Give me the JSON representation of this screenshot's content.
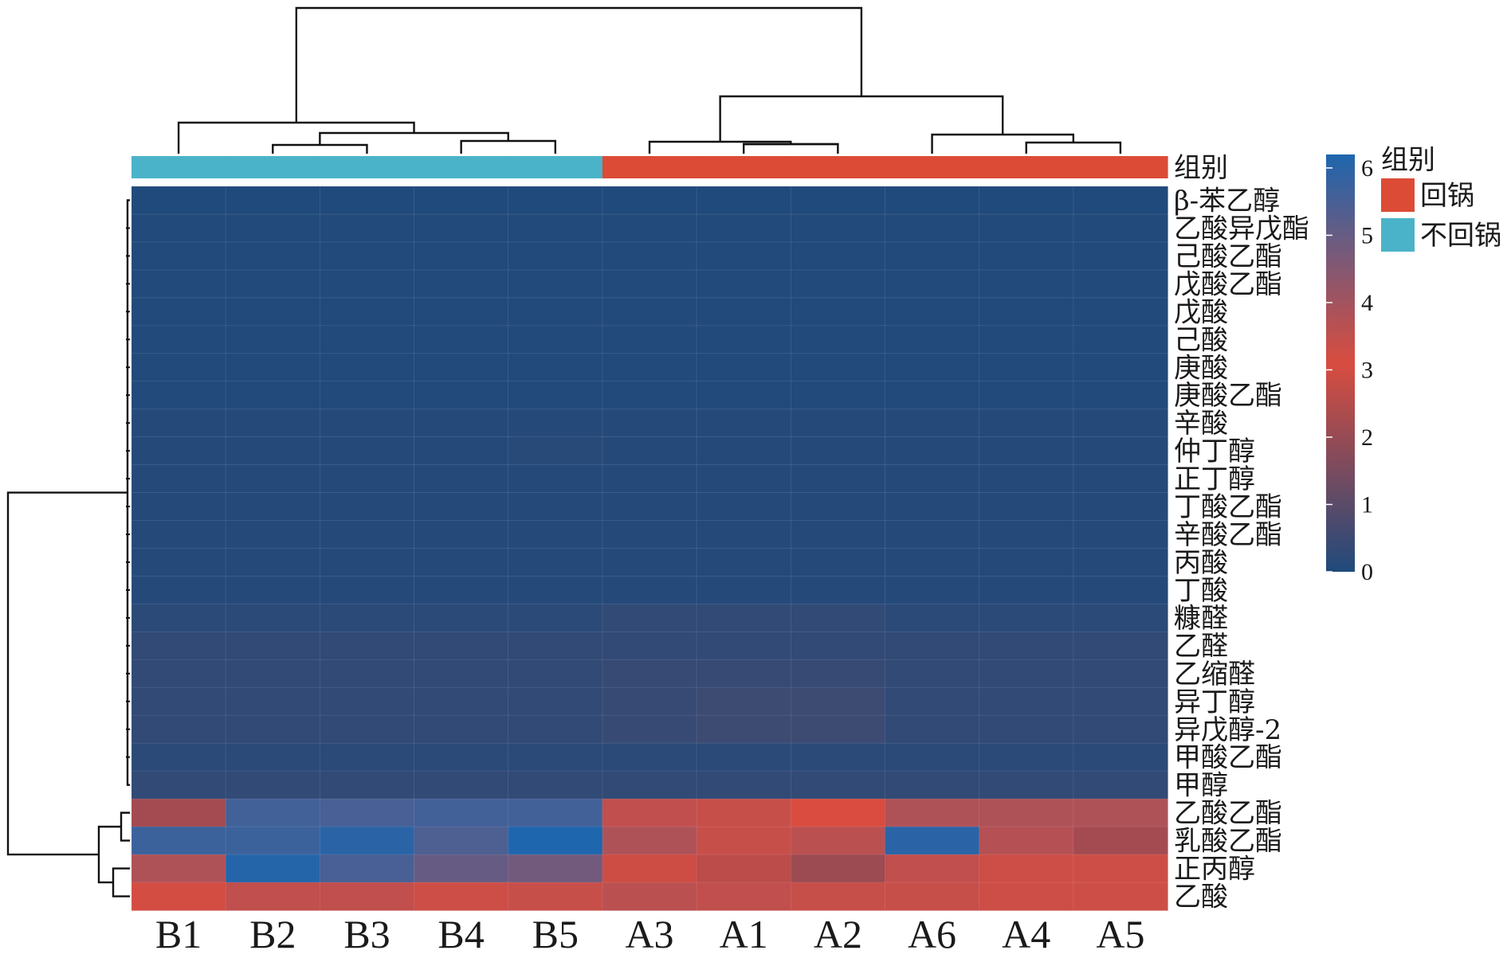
{
  "chart_data": {
    "type": "heatmap",
    "columns": [
      "B1",
      "B2",
      "B3",
      "B4",
      "B5",
      "A3",
      "A1",
      "A2",
      "A6",
      "A4",
      "A5"
    ],
    "rows": [
      "β-苯乙醇",
      "乙酸异戊酯",
      "己酸乙酯",
      "戊酸乙酯",
      "戊酸",
      "己酸",
      "庚酸",
      "庚酸乙酯",
      "辛酸",
      "仲丁醇",
      "正丁醇",
      "丁酸乙酯",
      "辛酸乙酯",
      "丙酸",
      "丁酸",
      "糠醛",
      "乙醛",
      "乙缩醛",
      "异丁醇",
      "异戊醇-2",
      "甲酸乙酯",
      "甲醇",
      "乙酸乙酯",
      "乳酸乙酯",
      "正丙醇",
      "乙酸"
    ],
    "values": [
      [
        0.02,
        0.02,
        0.02,
        0.02,
        0.02,
        0.02,
        0.02,
        0.02,
        0.02,
        0.02,
        0.02
      ],
      [
        0.05,
        0.05,
        0.05,
        0.05,
        0.05,
        0.05,
        0.05,
        0.05,
        0.05,
        0.05,
        0.05
      ],
      [
        0.05,
        0.05,
        0.05,
        0.05,
        0.05,
        0.05,
        0.05,
        0.05,
        0.05,
        0.05,
        0.05
      ],
      [
        0.05,
        0.05,
        0.05,
        0.05,
        0.05,
        0.05,
        0.05,
        0.05,
        0.05,
        0.05,
        0.05
      ],
      [
        0.05,
        0.05,
        0.05,
        0.05,
        0.05,
        0.05,
        0.05,
        0.05,
        0.05,
        0.05,
        0.05
      ],
      [
        0.05,
        0.05,
        0.05,
        0.05,
        0.05,
        0.05,
        0.05,
        0.05,
        0.05,
        0.05,
        0.05
      ],
      [
        0.05,
        0.05,
        0.05,
        0.05,
        0.05,
        0.05,
        0.05,
        0.05,
        0.05,
        0.05,
        0.05
      ],
      [
        0.05,
        0.05,
        0.05,
        0.05,
        0.05,
        0.05,
        0.05,
        0.05,
        0.05,
        0.05,
        0.05
      ],
      [
        0.1,
        0.1,
        0.1,
        0.1,
        0.1,
        0.1,
        0.1,
        0.1,
        0.1,
        0.1,
        0.1
      ],
      [
        0.1,
        0.1,
        0.1,
        0.1,
        0.15,
        0.1,
        0.1,
        0.1,
        0.1,
        0.1,
        0.1
      ],
      [
        0.1,
        0.1,
        0.1,
        0.1,
        0.1,
        0.1,
        0.1,
        0.1,
        0.1,
        0.1,
        0.1
      ],
      [
        0.1,
        0.1,
        0.1,
        0.1,
        0.1,
        0.1,
        0.1,
        0.1,
        0.1,
        0.1,
        0.1
      ],
      [
        0.1,
        0.1,
        0.1,
        0.1,
        0.1,
        0.1,
        0.1,
        0.1,
        0.1,
        0.1,
        0.1
      ],
      [
        0.1,
        0.1,
        0.1,
        0.1,
        0.1,
        0.1,
        0.1,
        0.1,
        0.1,
        0.1,
        0.1
      ],
      [
        0.1,
        0.1,
        0.1,
        0.1,
        0.1,
        0.1,
        0.1,
        0.1,
        0.1,
        0.1,
        0.1
      ],
      [
        0.2,
        0.2,
        0.2,
        0.2,
        0.2,
        0.3,
        0.3,
        0.3,
        0.2,
        0.2,
        0.2
      ],
      [
        0.3,
        0.3,
        0.3,
        0.3,
        0.3,
        0.3,
        0.3,
        0.3,
        0.3,
        0.3,
        0.3
      ],
      [
        0.3,
        0.3,
        0.3,
        0.3,
        0.3,
        0.4,
        0.4,
        0.4,
        0.3,
        0.3,
        0.3
      ],
      [
        0.3,
        0.3,
        0.3,
        0.3,
        0.3,
        0.4,
        0.5,
        0.5,
        0.3,
        0.3,
        0.3
      ],
      [
        0.3,
        0.3,
        0.3,
        0.3,
        0.3,
        0.4,
        0.5,
        0.5,
        0.3,
        0.3,
        0.3
      ],
      [
        0.2,
        0.2,
        0.2,
        0.2,
        0.2,
        0.2,
        0.2,
        0.2,
        0.2,
        0.2,
        0.2
      ],
      [
        0.3,
        0.3,
        0.3,
        0.3,
        0.3,
        0.3,
        0.3,
        0.3,
        0.3,
        0.3,
        0.3
      ],
      [
        2.2,
        5.6,
        5.5,
        5.6,
        5.6,
        3.5,
        3.4,
        3.1,
        3.8,
        3.8,
        3.8
      ],
      [
        5.7,
        5.7,
        6.0,
        5.4,
        6.3,
        3.8,
        3.4,
        3.6,
        6.0,
        3.7,
        2.2
      ],
      [
        3.8,
        6.1,
        5.5,
        5.0,
        4.8,
        2.9,
        2.6,
        2.1,
        3.5,
        3.3,
        3.3
      ],
      [
        3.2,
        3.5,
        3.5,
        3.3,
        3.4,
        3.6,
        3.5,
        3.4,
        3.4,
        3.3,
        3.3
      ]
    ],
    "groups": [
      "不回锅",
      "不回锅",
      "不回锅",
      "不回锅",
      "不回锅",
      "回锅",
      "回锅",
      "回锅",
      "回锅",
      "回锅",
      "回锅"
    ],
    "group_label": "组别",
    "legend_title": "组别",
    "legend_entries": [
      {
        "label": "回锅",
        "color": "#dc4b36"
      },
      {
        "label": "不回锅",
        "color": "#4bb3c9"
      }
    ],
    "colorbar_ticks": [
      "6",
      "5",
      "4",
      "3",
      "2",
      "1",
      "0"
    ],
    "colorbar_range": [
      0,
      6.2
    ],
    "colors": {
      "low": "#1f4a7c",
      "mid": "#d94c3f",
      "high": "#1e66ae",
      "dendrogram": "#111111"
    }
  }
}
